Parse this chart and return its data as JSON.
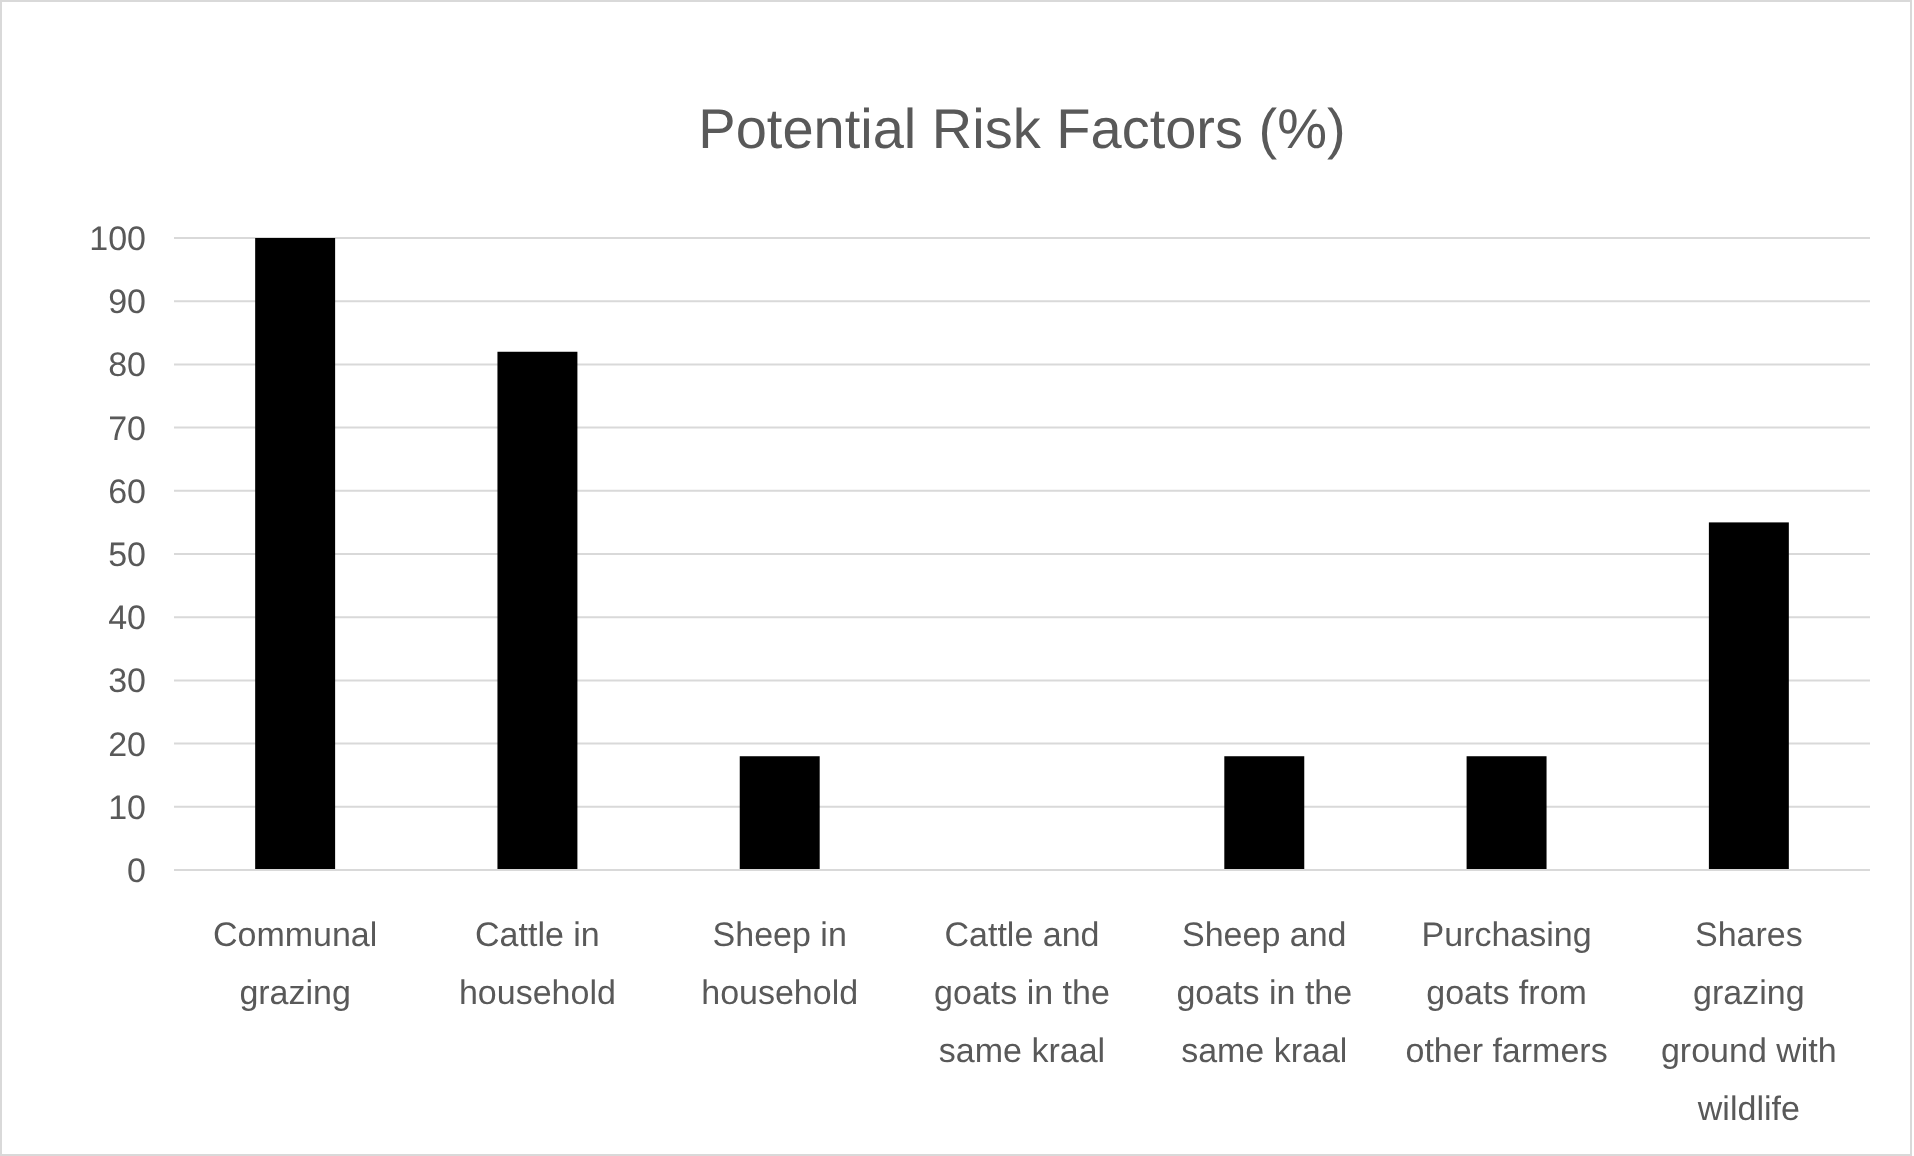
{
  "chart_data": {
    "type": "bar",
    "title": "Potential Risk Factors (%)",
    "categories": [
      "Communal grazing",
      "Cattle in household",
      "Sheep in household",
      "Cattle and goats in the same kraal",
      "Sheep and goats in the same kraal",
      "Purchasing goats from other farmers",
      "Shares grazing ground with wildlife"
    ],
    "values": [
      100,
      82,
      18,
      0,
      18,
      18,
      55
    ],
    "color": "#000000",
    "ylim": [
      0,
      100
    ],
    "yticks": [
      0,
      10,
      20,
      30,
      40,
      50,
      60,
      70,
      80,
      90,
      100
    ],
    "grid": "y"
  }
}
